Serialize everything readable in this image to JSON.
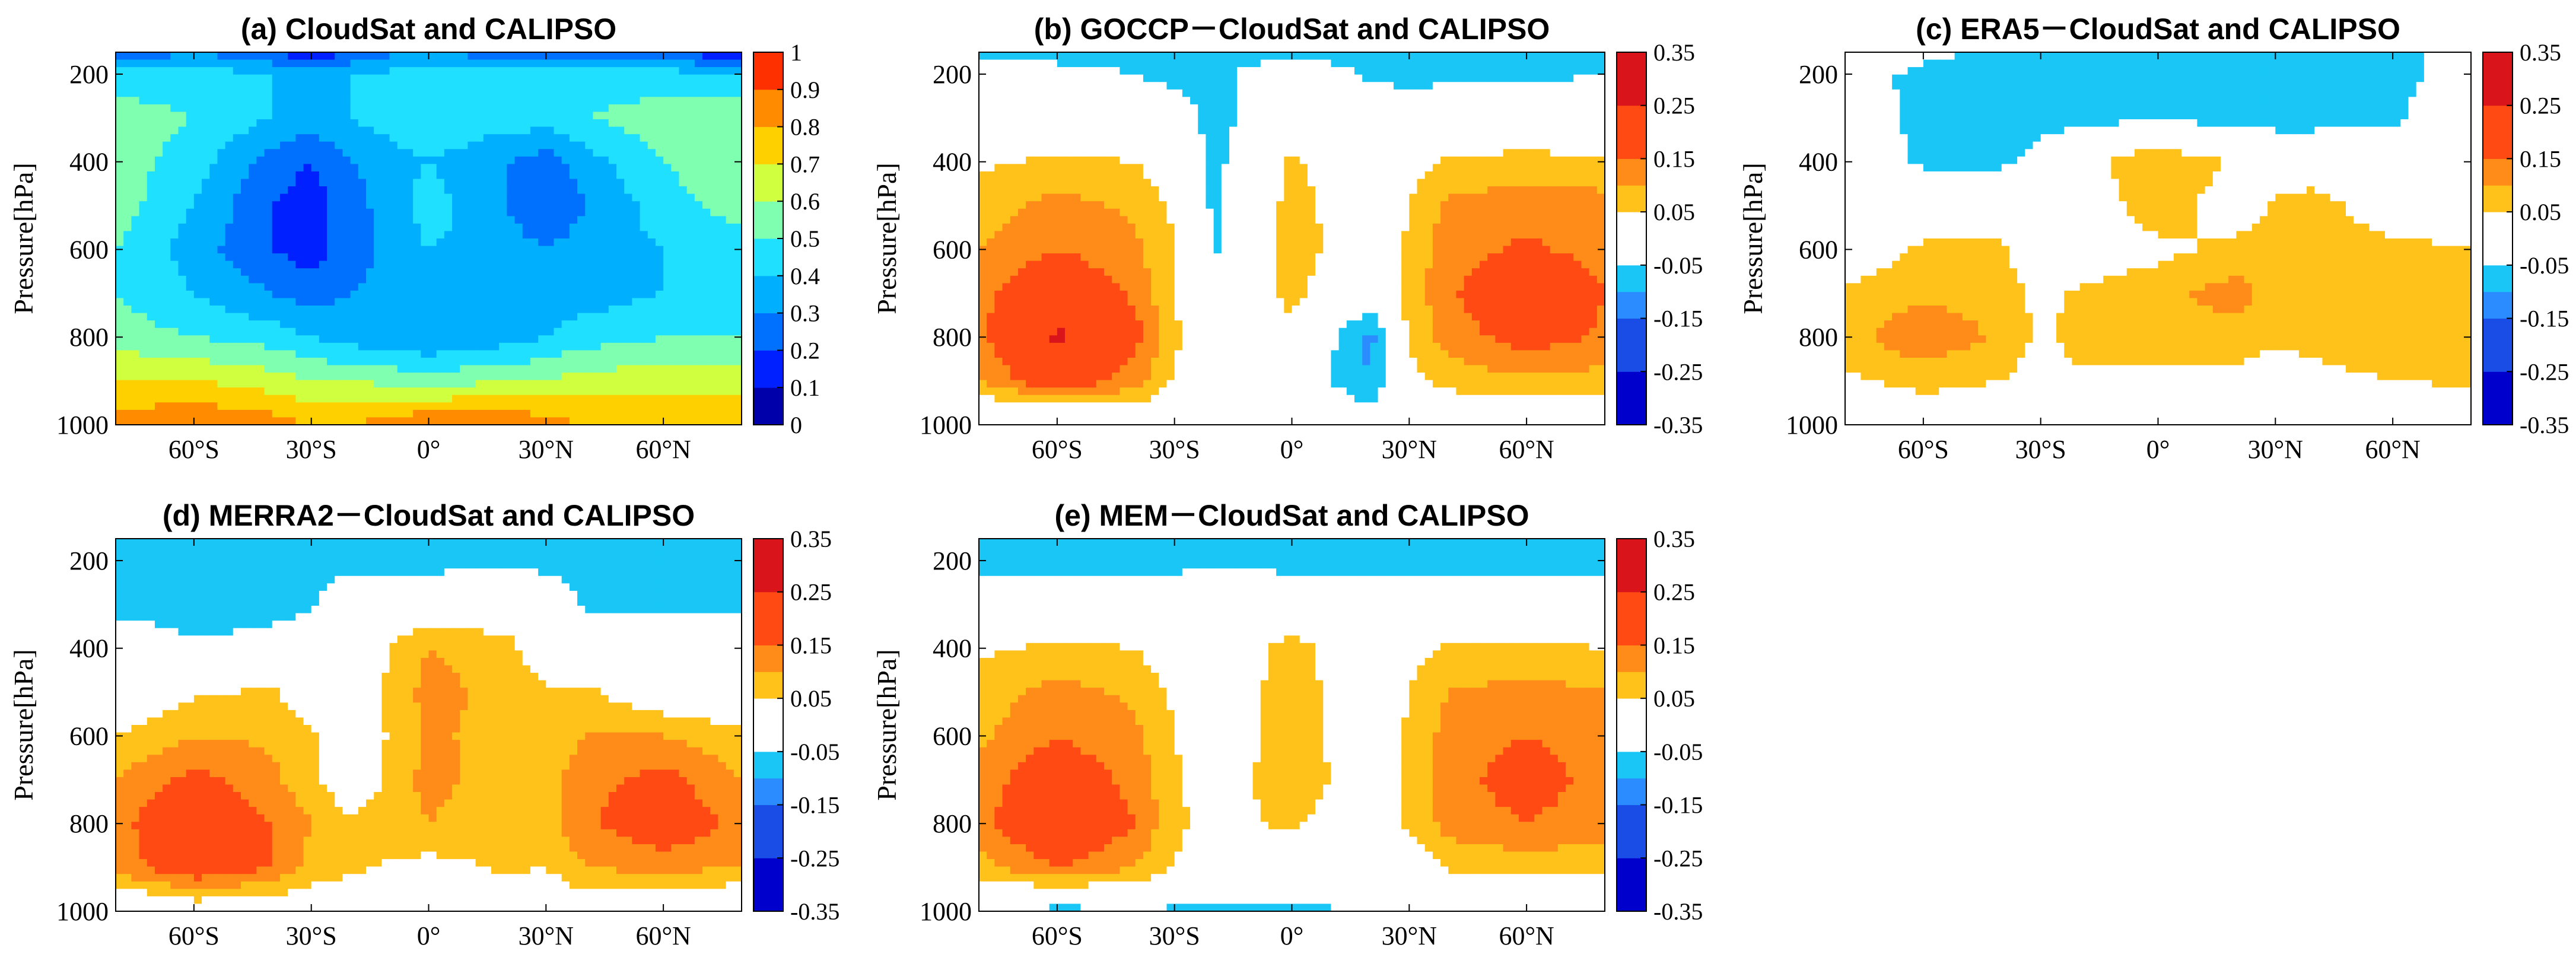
{
  "figure": {
    "y_axis_label": "Pressure[hPa]",
    "y_ticks": [
      "200",
      "400",
      "600",
      "800",
      "1000"
    ],
    "x_ticks": [
      "60°S",
      "30°S",
      "0°",
      "30°N",
      "60°N"
    ],
    "colorbar_abs_ticks": [
      "1",
      "0.9",
      "0.8",
      "0.7",
      "0.6",
      "0.5",
      "0.4",
      "0.3",
      "0.2",
      "0.1",
      "0"
    ],
    "colorbar_diff_ticks": [
      "0.35",
      "0.25",
      "0.15",
      "0.05",
      "-0.05",
      "-0.15",
      "-0.25",
      "-0.35"
    ]
  },
  "chart_data": [
    {
      "id": "a",
      "type": "heatmap",
      "title": "(a) CloudSat and CALIPSO",
      "xlabel": "",
      "ylabel": "Pressure[hPa]",
      "xlim": [
        -80,
        80
      ],
      "ylim": [
        1000,
        150
      ],
      "x_ticks": [
        -60,
        -30,
        0,
        30,
        60
      ],
      "y_ticks": [
        200,
        400,
        600,
        800,
        1000
      ],
      "colorbar": {
        "range": [
          0,
          1
        ],
        "step": 0.1,
        "scheme": "jet"
      },
      "x": [
        -80,
        -60,
        -40,
        -30,
        -20,
        0,
        20,
        30,
        40,
        60,
        80
      ],
      "y": [
        150,
        200,
        300,
        400,
        500,
        600,
        700,
        800,
        900,
        1000
      ],
      "values": [
        [
          0.2,
          0.3,
          0.2,
          0.1,
          0.2,
          0.35,
          0.2,
          0.2,
          0.25,
          0.2,
          0.1
        ],
        [
          0.45,
          0.45,
          0.4,
          0.35,
          0.4,
          0.45,
          0.45,
          0.45,
          0.45,
          0.45,
          0.4
        ],
        [
          0.55,
          0.5,
          0.4,
          0.35,
          0.4,
          0.5,
          0.45,
          0.45,
          0.5,
          0.55,
          0.6
        ],
        [
          0.55,
          0.45,
          0.25,
          0.2,
          0.3,
          0.4,
          0.3,
          0.25,
          0.35,
          0.5,
          0.6
        ],
        [
          0.55,
          0.4,
          0.2,
          0.15,
          0.25,
          0.45,
          0.3,
          0.2,
          0.3,
          0.45,
          0.55
        ],
        [
          0.5,
          0.35,
          0.2,
          0.15,
          0.25,
          0.4,
          0.35,
          0.3,
          0.35,
          0.4,
          0.45
        ],
        [
          0.5,
          0.4,
          0.3,
          0.25,
          0.3,
          0.35,
          0.35,
          0.35,
          0.35,
          0.4,
          0.45
        ],
        [
          0.55,
          0.5,
          0.45,
          0.4,
          0.35,
          0.3,
          0.35,
          0.4,
          0.45,
          0.5,
          0.5
        ],
        [
          0.7,
          0.7,
          0.65,
          0.6,
          0.6,
          0.55,
          0.6,
          0.6,
          0.65,
          0.65,
          0.65
        ],
        [
          0.85,
          0.9,
          0.85,
          0.8,
          0.8,
          0.9,
          0.9,
          0.85,
          0.8,
          0.8,
          0.8
        ]
      ]
    },
    {
      "id": "b",
      "type": "heatmap",
      "title": "(b) GOCCP－CloudSat and CALIPSO",
      "xlabel": "",
      "ylabel": "Pressure[hPa]",
      "xlim": [
        -80,
        80
      ],
      "ylim": [
        1000,
        150
      ],
      "x_ticks": [
        -60,
        -30,
        0,
        30,
        60
      ],
      "y_ticks": [
        200,
        400,
        600,
        800,
        1000
      ],
      "colorbar": {
        "range": [
          -0.35,
          0.35
        ],
        "step": 0.1,
        "scheme": "diverging"
      },
      "x": [
        -80,
        -60,
        -40,
        -30,
        -20,
        0,
        20,
        30,
        40,
        60,
        80
      ],
      "y": [
        150,
        200,
        300,
        400,
        500,
        600,
        700,
        800,
        900,
        1000
      ],
      "values": [
        [
          -0.08,
          -0.08,
          -0.08,
          -0.07,
          -0.07,
          -0.07,
          -0.07,
          -0.07,
          -0.08,
          -0.08,
          -0.08
        ],
        [
          0,
          -0.02,
          -0.05,
          -0.07,
          -0.07,
          0,
          -0.06,
          -0.07,
          -0.06,
          -0.06,
          -0.05
        ],
        [
          -0.02,
          0,
          0,
          -0.01,
          -0.07,
          0,
          0,
          -0.01,
          -0.01,
          -0.02,
          -0.01
        ],
        [
          0.04,
          0.06,
          0.05,
          0.01,
          -0.07,
          0.06,
          0,
          0.03,
          0.06,
          0.07,
          0.06
        ],
        [
          0.07,
          0.12,
          0.09,
          0.04,
          -0.06,
          0.07,
          0.01,
          0.05,
          0.11,
          0.13,
          0.12
        ],
        [
          0.1,
          0.15,
          0.11,
          0.05,
          -0.06,
          0.08,
          0,
          0.06,
          0.13,
          0.16,
          0.13
        ],
        [
          0.13,
          0.22,
          0.14,
          0.05,
          0,
          0.06,
          0,
          0.07,
          0.14,
          0.22,
          0.15
        ],
        [
          0.14,
          0.26,
          0.17,
          0.06,
          0,
          0.04,
          -0.12,
          0.06,
          0.12,
          0.18,
          0.14
        ],
        [
          0.1,
          0.2,
          0.12,
          0.04,
          0,
          0,
          -0.1,
          0.03,
          0.07,
          0.09,
          0.08
        ],
        [
          -0.06,
          -0.06,
          -0.02,
          0,
          0,
          0,
          0,
          0,
          -0.02,
          -0.03,
          -0.05
        ]
      ]
    },
    {
      "id": "c",
      "type": "heatmap",
      "title": "(c) ERA5－CloudSat and CALIPSO",
      "xlabel": "",
      "ylabel": "Pressure[hPa]",
      "xlim": [
        -80,
        80
      ],
      "ylim": [
        1000,
        150
      ],
      "x_ticks": [
        -60,
        -30,
        0,
        30,
        60
      ],
      "y_ticks": [
        200,
        400,
        600,
        800,
        1000
      ],
      "colorbar": {
        "range": [
          -0.35,
          0.35
        ],
        "step": 0.1,
        "scheme": "diverging"
      },
      "x": [
        -80,
        -60,
        -40,
        -30,
        -20,
        0,
        20,
        30,
        40,
        60,
        80
      ],
      "y": [
        150,
        200,
        300,
        400,
        500,
        600,
        700,
        800,
        900,
        1000
      ],
      "values": [
        [
          0.06,
          -0.03,
          -0.07,
          -0.07,
          -0.07,
          -0.07,
          -0.07,
          -0.07,
          -0.07,
          -0.06,
          -0.03
        ],
        [
          -0.02,
          -0.07,
          -0.08,
          -0.08,
          -0.08,
          -0.08,
          -0.08,
          -0.08,
          -0.08,
          -0.07,
          -0.02
        ],
        [
          0,
          -0.07,
          -0.08,
          -0.07,
          -0.07,
          -0.06,
          -0.07,
          -0.07,
          -0.07,
          -0.06,
          0
        ],
        [
          0,
          -0.06,
          -0.06,
          -0.03,
          0.02,
          0.1,
          0.04,
          0,
          0,
          0,
          0
        ],
        [
          0,
          0,
          0,
          0,
          0,
          0.09,
          0.01,
          0.06,
          0.08,
          0,
          0
        ],
        [
          0,
          0.06,
          0.06,
          0,
          0,
          0.03,
          0.07,
          0.07,
          0.08,
          0.07,
          0.05
        ],
        [
          0.06,
          0.09,
          0.08,
          0.03,
          0.06,
          0.09,
          0.12,
          0.08,
          0.08,
          0.1,
          0.07
        ],
        [
          0.08,
          0.14,
          0.09,
          0.04,
          0.07,
          0.08,
          0.08,
          0.06,
          0.07,
          0.1,
          0.1
        ],
        [
          0.04,
          0.07,
          0.05,
          0.02,
          0.04,
          0.03,
          0.03,
          0.02,
          0.03,
          0.05,
          0.06
        ],
        [
          -0.04,
          0,
          0,
          0,
          0,
          0,
          0,
          0,
          0,
          -0.03,
          -0.02
        ]
      ]
    },
    {
      "id": "d",
      "type": "heatmap",
      "title": "(d) MERRA2－CloudSat and CALIPSO",
      "xlabel": "",
      "ylabel": "Pressure[hPa]",
      "xlim": [
        -80,
        80
      ],
      "ylim": [
        1000,
        150
      ],
      "x_ticks": [
        -60,
        -30,
        0,
        30,
        60
      ],
      "y_ticks": [
        200,
        400,
        600,
        800,
        1000
      ],
      "colorbar": {
        "range": [
          -0.35,
          0.35
        ],
        "step": 0.1,
        "scheme": "diverging"
      },
      "x": [
        -80,
        -60,
        -40,
        -30,
        -20,
        0,
        20,
        30,
        40,
        60,
        80
      ],
      "y": [
        150,
        200,
        300,
        400,
        500,
        600,
        700,
        800,
        900,
        1000
      ],
      "values": [
        [
          -0.1,
          -0.1,
          -0.09,
          -0.07,
          -0.07,
          -0.07,
          -0.07,
          -0.07,
          -0.07,
          -0.07,
          -0.06
        ],
        [
          -0.1,
          -0.09,
          -0.08,
          -0.07,
          -0.07,
          -0.07,
          -0.06,
          -0.07,
          -0.07,
          -0.06,
          -0.05
        ],
        [
          -0.07,
          -0.08,
          -0.07,
          -0.06,
          0,
          0,
          0,
          0,
          -0.06,
          -0.06,
          -0.07
        ],
        [
          0,
          -0.04,
          -0.03,
          0,
          0,
          0.1,
          0.07,
          0,
          0,
          0,
          0
        ],
        [
          0,
          0.04,
          0.06,
          0,
          0,
          0.12,
          0.08,
          0.06,
          0.06,
          0,
          0
        ],
        [
          0.05,
          0.1,
          0.09,
          0.06,
          0,
          0.11,
          0.08,
          0.07,
          0.1,
          0.1,
          0.06
        ],
        [
          0.1,
          0.17,
          0.11,
          0.07,
          0,
          0.12,
          0.07,
          0.08,
          0.13,
          0.17,
          0.1
        ],
        [
          0.13,
          0.22,
          0.15,
          0.1,
          0.06,
          0.1,
          0.06,
          0.08,
          0.14,
          0.2,
          0.13
        ],
        [
          0.12,
          0.2,
          0.15,
          0.08,
          0.06,
          0.03,
          0.06,
          0.05,
          0.1,
          0.12,
          0.1
        ],
        [
          -0.04,
          0,
          0,
          0,
          0,
          0,
          0,
          0,
          0,
          -0.03,
          -0.03
        ]
      ]
    },
    {
      "id": "e",
      "type": "heatmap",
      "title": "(e) MEM－CloudSat and CALIPSO",
      "xlabel": "",
      "ylabel": "Pressure[hPa]",
      "xlim": [
        -80,
        80
      ],
      "ylim": [
        1000,
        150
      ],
      "x_ticks": [
        -60,
        -30,
        0,
        30,
        60
      ],
      "y_ticks": [
        200,
        400,
        600,
        800,
        1000
      ],
      "colorbar": {
        "range": [
          -0.35,
          0.35
        ],
        "step": 0.1,
        "scheme": "diverging"
      },
      "x": [
        -80,
        -60,
        -40,
        -30,
        -20,
        0,
        20,
        30,
        40,
        60,
        80
      ],
      "y": [
        150,
        200,
        300,
        400,
        500,
        600,
        700,
        800,
        900,
        1000
      ],
      "values": [
        [
          -0.08,
          -0.08,
          -0.07,
          -0.07,
          -0.07,
          -0.07,
          -0.07,
          -0.07,
          -0.07,
          -0.08,
          -0.08
        ],
        [
          -0.08,
          -0.07,
          -0.07,
          -0.07,
          -0.06,
          -0.07,
          -0.07,
          -0.07,
          -0.07,
          -0.07,
          -0.07
        ],
        [
          0,
          -0.02,
          -0.01,
          0,
          0,
          0,
          0,
          0,
          0,
          0,
          0
        ],
        [
          0.04,
          0.06,
          0.05,
          0,
          0,
          0.07,
          0,
          0.03,
          0.06,
          0.06,
          0.05
        ],
        [
          0.07,
          0.12,
          0.09,
          0.04,
          0,
          0.08,
          0,
          0.05,
          0.1,
          0.12,
          0.1
        ],
        [
          0.09,
          0.15,
          0.11,
          0.05,
          0,
          0.08,
          0,
          0.06,
          0.12,
          0.15,
          0.12
        ],
        [
          0.12,
          0.2,
          0.13,
          0.06,
          0.02,
          0.08,
          0.02,
          0.06,
          0.13,
          0.18,
          0.13
        ],
        [
          0.13,
          0.23,
          0.15,
          0.06,
          0.03,
          0.06,
          0,
          0.06,
          0.12,
          0.15,
          0.12
        ],
        [
          0.08,
          0.15,
          0.1,
          0.05,
          0,
          0,
          0,
          0,
          0.06,
          0.07,
          0.07
        ],
        [
          -0.05,
          -0.07,
          -0.06,
          -0.06,
          -0.06,
          -0.06,
          -0.05,
          -0.05,
          -0.06,
          -0.06,
          -0.05
        ]
      ]
    }
  ]
}
